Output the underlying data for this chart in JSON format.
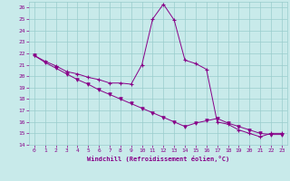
{
  "line1_x": [
    0,
    1,
    2,
    3,
    4,
    5,
    6,
    7,
    8,
    9,
    10,
    11,
    12,
    13,
    14,
    15,
    16,
    17,
    18,
    19,
    20,
    21,
    22,
    23
  ],
  "line1_y": [
    21.8,
    21.3,
    20.9,
    20.4,
    20.2,
    19.9,
    19.7,
    19.4,
    19.4,
    19.3,
    21.0,
    25.0,
    26.3,
    24.9,
    21.4,
    21.1,
    20.6,
    16.0,
    15.8,
    15.3,
    15.0,
    14.7,
    15.0,
    15.0
  ],
  "line2_x": [
    0,
    1,
    2,
    3,
    4,
    5,
    6,
    7,
    8,
    9,
    10,
    11,
    12,
    13,
    14,
    15,
    16,
    17,
    18,
    19,
    20,
    21,
    22,
    23
  ],
  "line2_y": [
    21.8,
    21.2,
    20.7,
    20.2,
    19.7,
    19.3,
    18.8,
    18.4,
    18.0,
    17.6,
    17.2,
    16.8,
    16.4,
    16.0,
    15.6,
    15.9,
    16.1,
    16.3,
    15.9,
    15.6,
    15.3,
    15.0,
    14.9,
    14.9
  ],
  "color": "#880088",
  "bg_color": "#c8eaea",
  "grid_color": "#99cccc",
  "xlabel": "Windchill (Refroidissement éolien,°C)",
  "xlim": [
    -0.5,
    23.5
  ],
  "ylim": [
    14,
    26.5
  ],
  "yticks": [
    14,
    15,
    16,
    17,
    18,
    19,
    20,
    21,
    22,
    23,
    24,
    25,
    26
  ],
  "xticks": [
    0,
    1,
    2,
    3,
    4,
    5,
    6,
    7,
    8,
    9,
    10,
    11,
    12,
    13,
    14,
    15,
    16,
    17,
    18,
    19,
    20,
    21,
    22,
    23
  ]
}
